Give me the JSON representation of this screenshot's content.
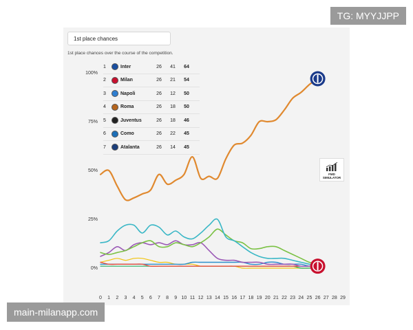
{
  "watermark_top": "TG: MYYJJPP",
  "watermark_bottom": "main-milanapp.com",
  "dropdown": {
    "label": "1st place chances"
  },
  "subtitle": "1st place chances over the course of the competition.",
  "fmd_logo": {
    "text": "FMD SIMULATOR"
  },
  "standings": [
    {
      "rank": "1",
      "team": "Inter",
      "played": "26",
      "points": "41",
      "pct": "64",
      "color": "#1a4fa0"
    },
    {
      "rank": "2",
      "team": "Milan",
      "played": "26",
      "points": "21",
      "pct": "54",
      "color": "#c8102e"
    },
    {
      "rank": "3",
      "team": "Napoli",
      "played": "26",
      "points": "12",
      "pct": "50",
      "color": "#2f7fd1"
    },
    {
      "rank": "4",
      "team": "Roma",
      "played": "26",
      "points": "18",
      "pct": "50",
      "color": "#b5651d"
    },
    {
      "rank": "5",
      "team": "Juventus",
      "played": "26",
      "points": "18",
      "pct": "46",
      "color": "#222222"
    },
    {
      "rank": "6",
      "team": "Como",
      "played": "26",
      "points": "22",
      "pct": "45",
      "color": "#1d6fb8"
    },
    {
      "rank": "7",
      "team": "Atalanta",
      "played": "26",
      "points": "14",
      "pct": "45",
      "color": "#1b3e7a"
    }
  ],
  "chart_data": {
    "type": "line",
    "title": "1st place chances",
    "subtitle": "1st place chances over the course of the competition.",
    "xlabel": "",
    "ylabel": "",
    "x": [
      0,
      1,
      2,
      3,
      4,
      5,
      6,
      7,
      8,
      9,
      10,
      11,
      12,
      13,
      14,
      15,
      16,
      17,
      18,
      19,
      20,
      21,
      22,
      23,
      24,
      25,
      26
    ],
    "xticks": [
      "0",
      "1",
      "2",
      "3",
      "4",
      "5",
      "6",
      "7",
      "8",
      "9",
      "10",
      "11",
      "12",
      "13",
      "14",
      "15",
      "16",
      "17",
      "18",
      "19",
      "20",
      "21",
      "22",
      "23",
      "24",
      "25",
      "26",
      "27",
      "28",
      "29"
    ],
    "yticks": [
      "0%",
      "25%",
      "50%",
      "75%",
      "100%"
    ],
    "xlim": [
      0,
      29
    ],
    "ylim": [
      0,
      100
    ],
    "grid": false,
    "series": [
      {
        "color": "#e0892f",
        "width": 2.2,
        "values": [
          48,
          50,
          42,
          35,
          36,
          38,
          40,
          48,
          43,
          45,
          48,
          57,
          46,
          47,
          46,
          56,
          63,
          64,
          68,
          75,
          75,
          76,
          81,
          87,
          90,
          94,
          97
        ]
      },
      {
        "color": "#3ab7c6",
        "width": 1.6,
        "values": [
          13,
          14,
          19,
          22,
          22,
          18,
          22,
          21,
          17,
          19,
          16,
          15,
          18,
          22,
          25,
          16,
          14,
          11,
          8,
          6,
          5,
          5,
          5,
          4,
          3,
          2,
          1
        ]
      },
      {
        "color": "#7ac143",
        "width": 1.6,
        "values": [
          8,
          7,
          8,
          9,
          11,
          13,
          14,
          11,
          11,
          13,
          12,
          11,
          13,
          16,
          20,
          17,
          14,
          13,
          10,
          10,
          11,
          11,
          9,
          7,
          5,
          3,
          2
        ]
      },
      {
        "color": "#9b59b6",
        "width": 1.6,
        "values": [
          6,
          8,
          11,
          9,
          12,
          13,
          12,
          13,
          12,
          14,
          12,
          12,
          13,
          9,
          5,
          4,
          4,
          3,
          3,
          3,
          2,
          2,
          2,
          2,
          1,
          1,
          1
        ]
      },
      {
        "color": "#e74c3c",
        "width": 1.4,
        "values": [
          3,
          2,
          2,
          2,
          2,
          2,
          1,
          1,
          1,
          1,
          1,
          1,
          1,
          1,
          1,
          1,
          1,
          1,
          1,
          1,
          1,
          1,
          1,
          1,
          1,
          1,
          1
        ]
      },
      {
        "color": "#2c8fcb",
        "width": 1.4,
        "values": [
          2,
          2,
          2,
          2,
          2,
          2,
          2,
          2,
          2,
          2,
          2,
          3,
          3,
          3,
          3,
          3,
          3,
          3,
          2,
          2,
          3,
          3,
          2,
          2,
          2,
          1,
          1
        ]
      },
      {
        "color": "#27ae60",
        "width": 1.2,
        "values": [
          1,
          1,
          1,
          1,
          1,
          1,
          1,
          1,
          1,
          1,
          1,
          1,
          1,
          1,
          1,
          1,
          1,
          1,
          1,
          1,
          1,
          1,
          1,
          1,
          0,
          0,
          0
        ]
      },
      {
        "color": "#f1c40f",
        "width": 1.2,
        "values": [
          3,
          4,
          5,
          4,
          5,
          5,
          4,
          3,
          3,
          2,
          2,
          2,
          1,
          1,
          1,
          1,
          1,
          0,
          0,
          0,
          0,
          0,
          0,
          0,
          0,
          0,
          0
        ]
      }
    ],
    "end_markers": [
      {
        "name": "inter-crest",
        "x": 26,
        "y": 97,
        "color": "#1a3a8a"
      },
      {
        "name": "milan-crest",
        "x": 26,
        "y": 1,
        "color": "#c8102e"
      }
    ]
  }
}
